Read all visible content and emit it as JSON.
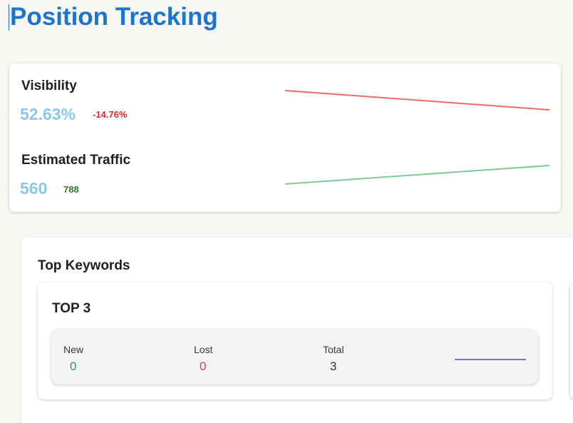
{
  "header": {
    "title": "Position Tracking"
  },
  "metrics": {
    "visibility": {
      "label": "Visibility",
      "value": "52.63%",
      "delta": "-14.76%",
      "delta_color": "#d42b2b",
      "line_color": "#ee6a63",
      "trend": "down"
    },
    "traffic": {
      "label": "Estimated Traffic",
      "value": "560",
      "delta": "788",
      "delta_color": "#2e7d32",
      "line_color": "#7dcb92",
      "trend": "up"
    }
  },
  "keywords": {
    "title": "Top Keywords",
    "top3": {
      "title": "TOP 3",
      "stats": [
        {
          "label": "New",
          "value": "0",
          "color": "#2e9e4f"
        },
        {
          "label": "Lost",
          "value": "0",
          "color": "#d8433b"
        },
        {
          "label": "Total",
          "value": "3",
          "color": "#333333"
        }
      ],
      "line_color": "#7b77c3"
    }
  }
}
